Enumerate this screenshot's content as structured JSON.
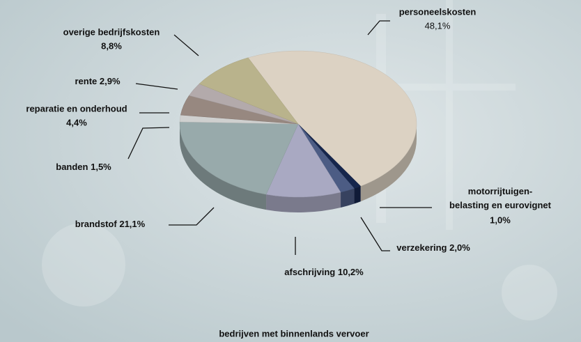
{
  "chart_data": {
    "type": "pie",
    "title": "bedrijven met binnenlands vervoer",
    "categories": [
      "personeelskosten",
      "motorrijtuigen-belasting en eurovignet",
      "verzekering",
      "afschrijving",
      "brandstof",
      "banden",
      "reparatie en onderhoud",
      "rente",
      "overige bedrijfskosten"
    ],
    "values": [
      48.1,
      1.0,
      2.0,
      10.2,
      21.1,
      1.5,
      4.4,
      2.9,
      8.8
    ],
    "value_labels": [
      "48,1%",
      "1,0%",
      "2,0%",
      "10,2%",
      "21,1%",
      "1,5%",
      "4,4%",
      "2,9%",
      "8,8%"
    ],
    "colors": [
      "#dcd2c3",
      "#16264c",
      "#4c5c84",
      "#a9a9c2",
      "#98aaab",
      "#cfd0cf",
      "#978880",
      "#b3aaab",
      "#b9b38c"
    ]
  }
}
